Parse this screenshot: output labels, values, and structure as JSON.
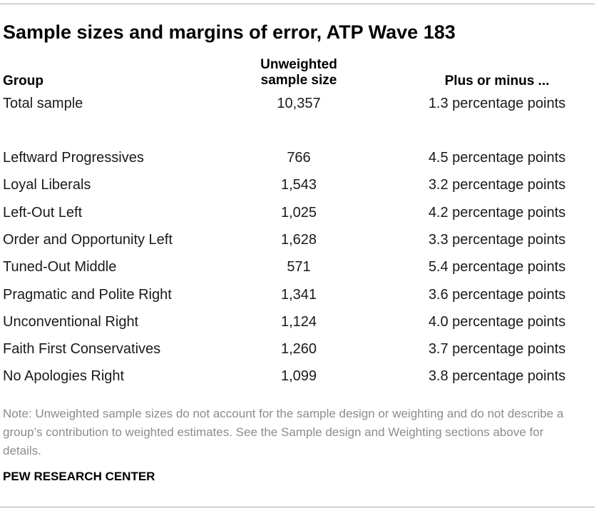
{
  "title": "Sample sizes and margins of error, ATP Wave 183",
  "headers": {
    "group": "Group",
    "size_line1": "Unweighted",
    "size_line2": "sample size",
    "moe": "Plus or minus ..."
  },
  "rows": [
    {
      "group": "Total sample",
      "size": "10,357",
      "moe": "1.3 percentage points"
    },
    {
      "group": "Leftward Progressives",
      "size": "766",
      "moe": "4.5 percentage points"
    },
    {
      "group": "Loyal Liberals",
      "size": "1,543",
      "moe": "3.2 percentage points"
    },
    {
      "group": "Left-Out Left",
      "size": "1,025",
      "moe": "4.2 percentage points"
    },
    {
      "group": "Order and Opportunity Left",
      "size": "1,628",
      "moe": "3.3 percentage points"
    },
    {
      "group": "Tuned-Out Middle",
      "size": "571",
      "moe": "5.4 percentage points"
    },
    {
      "group": "Pragmatic and Polite Right",
      "size": "1,341",
      "moe": "3.6 percentage points"
    },
    {
      "group": "Unconventional Right",
      "size": "1,124",
      "moe": "4.0 percentage points"
    },
    {
      "group": "Faith First Conservatives",
      "size": "1,260",
      "moe": "3.7 percentage points"
    },
    {
      "group": "No Apologies Right",
      "size": "1,099",
      "moe": "3.8 percentage points"
    }
  ],
  "note": "Note: Unweighted sample sizes do not account for the sample design or weighting and do not describe a group’s contribution to weighted estimates. See the Sample design and Weighting sections above for details.",
  "source": "PEW RESEARCH CENTER",
  "colors": {
    "text": "#1a1a1a",
    "note": "#8c8c8c",
    "rule": "#a6a6a6"
  }
}
